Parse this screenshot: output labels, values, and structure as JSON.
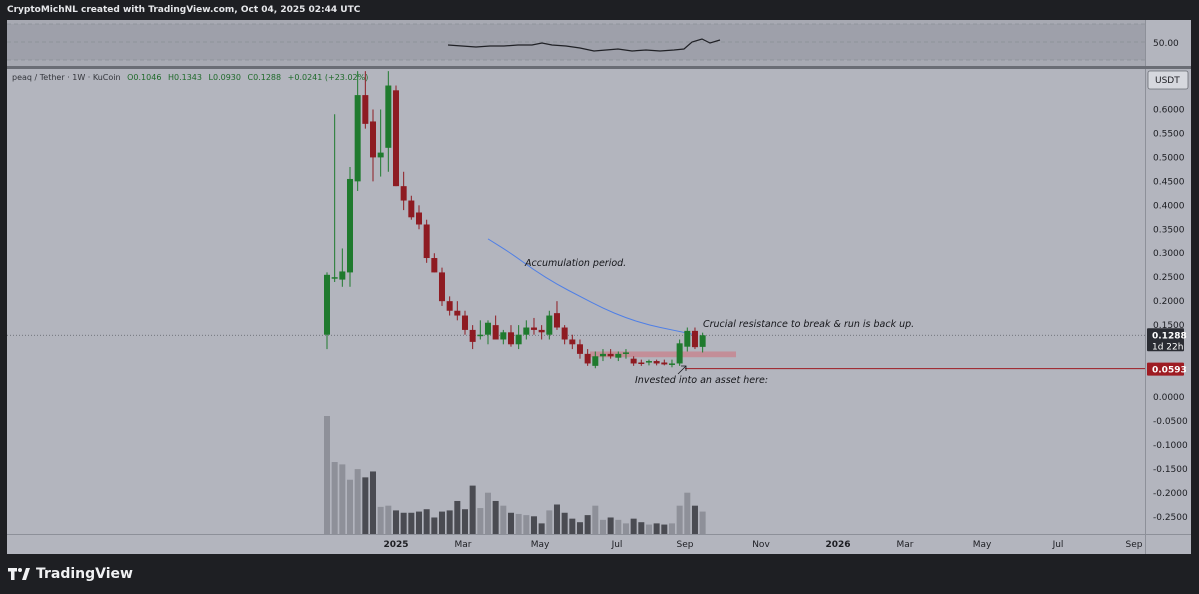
{
  "header": {
    "attribution": "CryptoMichNL created with TradingView.com, Oct 04, 2025 02:44 UTC"
  },
  "branding": {
    "logo_text": "TradingView"
  },
  "legend": {
    "symbol": "peaq / Tether · 1W · KuCoin",
    "open": "O0.1046",
    "high": "H0.1343",
    "low": "L0.0930",
    "close": "C0.1288",
    "change": "+0.0241 (+23.02%)"
  },
  "indicator": {
    "level_label": "50.00"
  },
  "axis": {
    "currency": "USDT",
    "y_ticks": [
      "0.6000",
      "0.5500",
      "0.5000",
      "0.4500",
      "0.4000",
      "0.3500",
      "0.3000",
      "0.2500",
      "0.2000",
      "0.1500",
      "0.0000",
      "-0.0500",
      "-0.1000",
      "-0.1500",
      "-0.2000",
      "-0.2500"
    ],
    "x_ticks": [
      {
        "label": "2025",
        "bold": true
      },
      {
        "label": "Mar",
        "bold": false
      },
      {
        "label": "May",
        "bold": false
      },
      {
        "label": "Jul",
        "bold": false
      },
      {
        "label": "Sep",
        "bold": false
      },
      {
        "label": "Nov",
        "bold": false
      },
      {
        "label": "2026",
        "bold": true
      },
      {
        "label": "Mar",
        "bold": false
      },
      {
        "label": "May",
        "bold": false
      },
      {
        "label": "Jul",
        "bold": false
      },
      {
        "label": "Sep",
        "bold": false
      }
    ]
  },
  "badges": {
    "last_price": "0.1288",
    "countdown": "1d 22h",
    "horizontal_level": "0.0593"
  },
  "annotations": {
    "accumulation": "Accumulation period.",
    "resistance": "Crucial resistance to break & run is back up.",
    "invested": "Invested into an asset here:"
  },
  "colors": {
    "chart_bg": "#b3b5be",
    "bull": "#1f7a2e",
    "bear": "#8e1b22",
    "ma_line": "#4f7fe6",
    "level_line": "#9e1b22",
    "zone": "#c48a94",
    "volume_light": "#8e9099",
    "volume_dark": "#4a4b52"
  },
  "chart_data": {
    "type": "candlestick",
    "timeframe": "1W",
    "candles": [
      {
        "o": 0.13,
        "h": 0.26,
        "l": 0.1,
        "c": 0.255
      },
      {
        "o": 0.25,
        "h": 0.59,
        "l": 0.24,
        "c": 0.25
      },
      {
        "o": 0.245,
        "h": 0.31,
        "l": 0.23,
        "c": 0.262
      },
      {
        "o": 0.26,
        "h": 0.48,
        "l": 0.23,
        "c": 0.455
      },
      {
        "o": 0.45,
        "h": 0.68,
        "l": 0.43,
        "c": 0.63
      },
      {
        "o": 0.63,
        "h": 0.68,
        "l": 0.56,
        "c": 0.57
      },
      {
        "o": 0.575,
        "h": 0.6,
        "l": 0.45,
        "c": 0.5
      },
      {
        "o": 0.5,
        "h": 0.6,
        "l": 0.46,
        "c": 0.51
      },
      {
        "o": 0.52,
        "h": 0.68,
        "l": 0.47,
        "c": 0.65
      },
      {
        "o": 0.64,
        "h": 0.65,
        "l": 0.44,
        "c": 0.44
      },
      {
        "o": 0.44,
        "h": 0.47,
        "l": 0.39,
        "c": 0.41
      },
      {
        "o": 0.41,
        "h": 0.42,
        "l": 0.37,
        "c": 0.375
      },
      {
        "o": 0.385,
        "h": 0.4,
        "l": 0.35,
        "c": 0.36
      },
      {
        "o": 0.36,
        "h": 0.37,
        "l": 0.28,
        "c": 0.29
      },
      {
        "o": 0.29,
        "h": 0.3,
        "l": 0.26,
        "c": 0.26
      },
      {
        "o": 0.26,
        "h": 0.27,
        "l": 0.19,
        "c": 0.2
      },
      {
        "o": 0.2,
        "h": 0.21,
        "l": 0.17,
        "c": 0.18
      },
      {
        "o": 0.18,
        "h": 0.2,
        "l": 0.16,
        "c": 0.17
      },
      {
        "o": 0.17,
        "h": 0.18,
        "l": 0.13,
        "c": 0.14
      },
      {
        "o": 0.14,
        "h": 0.15,
        "l": 0.1,
        "c": 0.115
      },
      {
        "o": 0.13,
        "h": 0.16,
        "l": 0.12,
        "c": 0.13
      },
      {
        "o": 0.13,
        "h": 0.16,
        "l": 0.11,
        "c": 0.155
      },
      {
        "o": 0.15,
        "h": 0.17,
        "l": 0.12,
        "c": 0.12
      },
      {
        "o": 0.12,
        "h": 0.14,
        "l": 0.11,
        "c": 0.135
      },
      {
        "o": 0.135,
        "h": 0.15,
        "l": 0.105,
        "c": 0.11
      },
      {
        "o": 0.11,
        "h": 0.15,
        "l": 0.1,
        "c": 0.13
      },
      {
        "o": 0.13,
        "h": 0.16,
        "l": 0.12,
        "c": 0.145
      },
      {
        "o": 0.145,
        "h": 0.165,
        "l": 0.13,
        "c": 0.14
      },
      {
        "o": 0.14,
        "h": 0.15,
        "l": 0.12,
        "c": 0.135
      },
      {
        "o": 0.13,
        "h": 0.18,
        "l": 0.12,
        "c": 0.17
      },
      {
        "o": 0.175,
        "h": 0.2,
        "l": 0.14,
        "c": 0.145
      },
      {
        "o": 0.145,
        "h": 0.15,
        "l": 0.11,
        "c": 0.12
      },
      {
        "o": 0.12,
        "h": 0.13,
        "l": 0.1,
        "c": 0.11
      },
      {
        "o": 0.11,
        "h": 0.12,
        "l": 0.08,
        "c": 0.09
      },
      {
        "o": 0.09,
        "h": 0.1,
        "l": 0.065,
        "c": 0.07
      },
      {
        "o": 0.065,
        "h": 0.095,
        "l": 0.06,
        "c": 0.085
      },
      {
        "o": 0.085,
        "h": 0.1,
        "l": 0.075,
        "c": 0.09
      },
      {
        "o": 0.09,
        "h": 0.1,
        "l": 0.08,
        "c": 0.085
      },
      {
        "o": 0.082,
        "h": 0.095,
        "l": 0.075,
        "c": 0.09
      },
      {
        "o": 0.09,
        "h": 0.1,
        "l": 0.08,
        "c": 0.093
      },
      {
        "o": 0.08,
        "h": 0.085,
        "l": 0.065,
        "c": 0.07
      },
      {
        "o": 0.072,
        "h": 0.078,
        "l": 0.065,
        "c": 0.07
      },
      {
        "o": 0.072,
        "h": 0.078,
        "l": 0.066,
        "c": 0.075
      },
      {
        "o": 0.075,
        "h": 0.078,
        "l": 0.066,
        "c": 0.07
      },
      {
        "o": 0.072,
        "h": 0.078,
        "l": 0.066,
        "c": 0.068
      },
      {
        "o": 0.068,
        "h": 0.078,
        "l": 0.062,
        "c": 0.07
      },
      {
        "o": 0.07,
        "h": 0.12,
        "l": 0.065,
        "c": 0.112
      },
      {
        "o": 0.105,
        "h": 0.145,
        "l": 0.095,
        "c": 0.138
      },
      {
        "o": 0.138,
        "h": 0.145,
        "l": 0.1,
        "c": 0.104
      },
      {
        "o": 0.1046,
        "h": 0.1343,
        "l": 0.093,
        "c": 0.1288
      }
    ],
    "volume": [
      1.0,
      0.61,
      0.59,
      0.46,
      0.55,
      0.48,
      0.53,
      0.23,
      0.24,
      0.2,
      0.18,
      0.18,
      0.19,
      0.21,
      0.14,
      0.19,
      0.2,
      0.28,
      0.21,
      0.41,
      0.22,
      0.35,
      0.28,
      0.24,
      0.18,
      0.17,
      0.16,
      0.15,
      0.09,
      0.2,
      0.25,
      0.18,
      0.13,
      0.1,
      0.16,
      0.24,
      0.12,
      0.14,
      0.12,
      0.09,
      0.13,
      0.1,
      0.08,
      0.09,
      0.08,
      0.09,
      0.24,
      0.35,
      0.24,
      0.19
    ],
    "moving_average": [
      [
        0.33,
        21
      ],
      [
        0.3,
        24
      ],
      [
        0.265,
        27
      ],
      [
        0.235,
        30
      ],
      [
        0.21,
        33
      ],
      [
        0.185,
        36
      ],
      [
        0.165,
        39
      ],
      [
        0.15,
        42
      ],
      [
        0.14,
        45
      ],
      [
        0.13,
        48
      ]
    ],
    "horizontal_level": 0.0593,
    "resistance_zone": [
      0.083,
      0.095
    ],
    "ylim": [
      -0.29,
      0.69
    ]
  }
}
